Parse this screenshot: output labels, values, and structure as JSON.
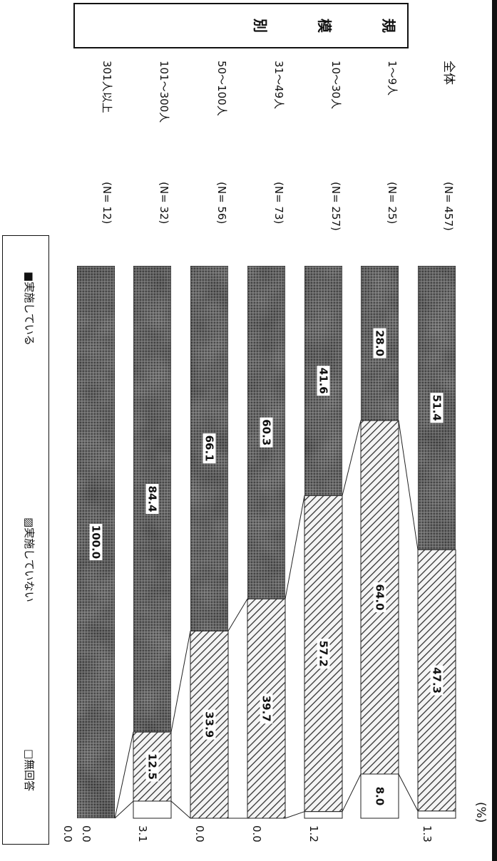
{
  "chart_data": {
    "type": "bar",
    "orientation": "horizontal-stacked-100",
    "unit_label": "(%)",
    "group_box_label": "規模別",
    "categories": [
      "全体",
      "1～9人",
      "10～30人",
      "31～49人",
      "50～100人",
      "101～300人",
      "301人以上"
    ],
    "n_labels": [
      "(N= 457)",
      "(N= 25)",
      "(N= 257)",
      "(N= 73)",
      "(N= 56)",
      "(N= 32)",
      "(N= 12)"
    ],
    "series": [
      {
        "name": "実施している",
        "values": [
          51.4,
          28.0,
          41.6,
          60.3,
          66.1,
          84.4,
          100.0
        ],
        "labels": [
          "51.4",
          "28.0",
          "41.6",
          "60.3",
          "66.1",
          "84.4",
          "100.0"
        ],
        "pattern": "dark-stipple"
      },
      {
        "name": "実施していない",
        "values": [
          47.3,
          64.0,
          57.2,
          39.7,
          33.9,
          12.5,
          0.0
        ],
        "labels": [
          "47.3",
          "64.0",
          "57.2",
          "39.7",
          "33.9",
          "12.5",
          ""
        ],
        "pattern": "diagonal-hatch"
      },
      {
        "name": "無回答",
        "values": [
          1.3,
          8.0,
          1.2,
          0.0,
          0.0,
          3.1,
          0.0
        ],
        "labels": [
          "",
          "8.0",
          "",
          "",
          "",
          "",
          ""
        ],
        "pattern": "white"
      }
    ],
    "noanswer_edge_labels": [
      "1.3",
      "",
      "1.2",
      "0.0",
      "0.0",
      "3.1",
      "0.0"
    ],
    "noanswer_edge_label_extra": "0.0",
    "legend": {
      "items": [
        "■実施している",
        "▨実施していない",
        "□無回答"
      ],
      "placement": "left"
    },
    "grid": false,
    "xlim": [
      0,
      100
    ],
    "colors": {
      "implemented": "#6e6e6e",
      "not_implemented_hatch": "#444444",
      "no_answer": "#ffffff"
    }
  }
}
